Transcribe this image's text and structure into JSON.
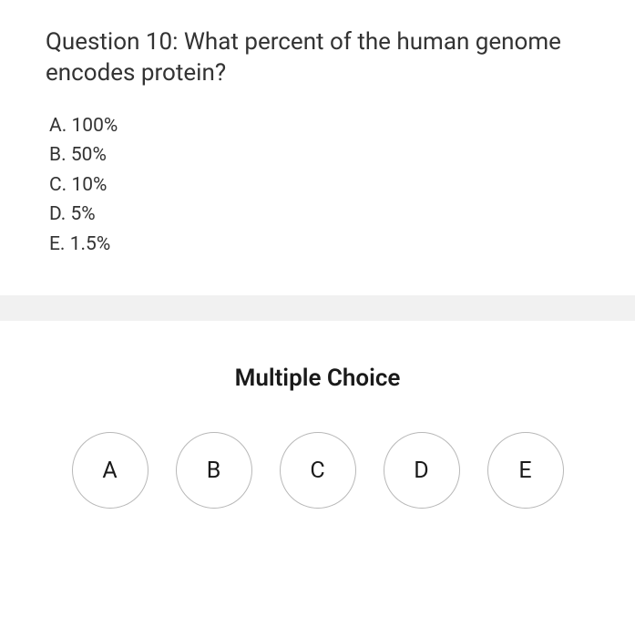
{
  "question": {
    "text": "Question 10: What percent of the human genome encodes protein?",
    "answers": [
      {
        "label": "A.",
        "value": "100%"
      },
      {
        "label": "B.",
        "value": "50%"
      },
      {
        "label": "C.",
        "value": "10%"
      },
      {
        "label": "D.",
        "value": "5%"
      },
      {
        "label": "E.",
        "value": "1.5%"
      }
    ]
  },
  "choice": {
    "heading": "Multiple Choice",
    "options": [
      "A",
      "B",
      "C",
      "D",
      "E"
    ]
  },
  "colors": {
    "text": "#333333",
    "heading": "#1a1a1a",
    "divider": "#f1f1f1",
    "circle_border": "#b8b8b8",
    "background": "#ffffff"
  },
  "typography": {
    "question_fontsize": 26,
    "answer_fontsize": 21,
    "heading_fontsize": 26,
    "button_fontsize": 25
  },
  "layout": {
    "button_diameter": 84,
    "button_gap": 30
  }
}
